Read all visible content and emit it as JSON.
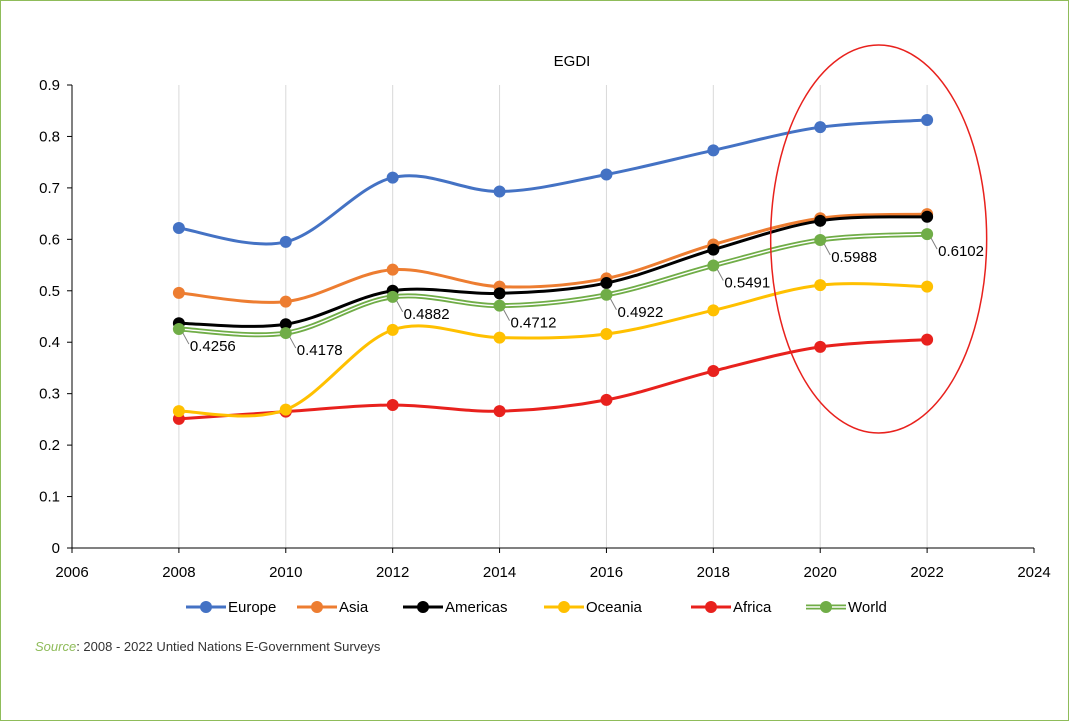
{
  "chart_data": {
    "type": "line",
    "title": "EGDI",
    "xlabel": "",
    "ylabel": "",
    "xlim": [
      2006,
      2024
    ],
    "ylim": [
      0,
      0.9
    ],
    "x_ticks": [
      "2006",
      "2008",
      "2010",
      "2012",
      "2014",
      "2016",
      "2018",
      "2020",
      "2022",
      "2024"
    ],
    "y_ticks": [
      "0",
      "0.1",
      "0.2",
      "0.3",
      "0.4",
      "0.5",
      "0.6",
      "0.7",
      "0.8",
      "0.9"
    ],
    "grid": "vertical",
    "legend_position": "bottom",
    "x": [
      2008,
      2010,
      2012,
      2014,
      2016,
      2018,
      2020,
      2022
    ],
    "series": [
      {
        "name": "Europe",
        "color": "#4472c4",
        "values": [
          0.622,
          0.595,
          0.72,
          0.693,
          0.726,
          0.773,
          0.818,
          0.832
        ]
      },
      {
        "name": "Asia",
        "color": "#ed7d31",
        "values": [
          0.496,
          0.479,
          0.541,
          0.508,
          0.524,
          0.59,
          0.641,
          0.649
        ]
      },
      {
        "name": "Americas",
        "color": "#000000",
        "values": [
          0.437,
          0.435,
          0.5,
          0.495,
          0.515,
          0.58,
          0.636,
          0.644
        ]
      },
      {
        "name": "Oceania",
        "color": "#ffc000",
        "values": [
          0.266,
          0.269,
          0.424,
          0.409,
          0.416,
          0.462,
          0.511,
          0.508
        ]
      },
      {
        "name": "Africa",
        "color": "#e8211d",
        "values": [
          0.251,
          0.265,
          0.278,
          0.266,
          0.288,
          0.344,
          0.391,
          0.405
        ]
      },
      {
        "name": "World",
        "color": "#70ad47",
        "double_line": true,
        "values": [
          0.4256,
          0.4178,
          0.4882,
          0.4712,
          0.4922,
          0.5491,
          0.5988,
          0.6102
        ]
      }
    ],
    "data_labels": [
      "0.4256",
      "0.4178",
      "0.4882",
      "0.4712",
      "0.4922",
      "0.5491",
      "0.5988",
      "0.6102"
    ],
    "annotation": {
      "shape": "ellipse",
      "color": "#e8211d",
      "around_x": [
        2020,
        2022
      ]
    }
  },
  "source": {
    "label": "Source",
    "text": ": 2008 - 2022 Untied Nations E-Government Surveys"
  }
}
